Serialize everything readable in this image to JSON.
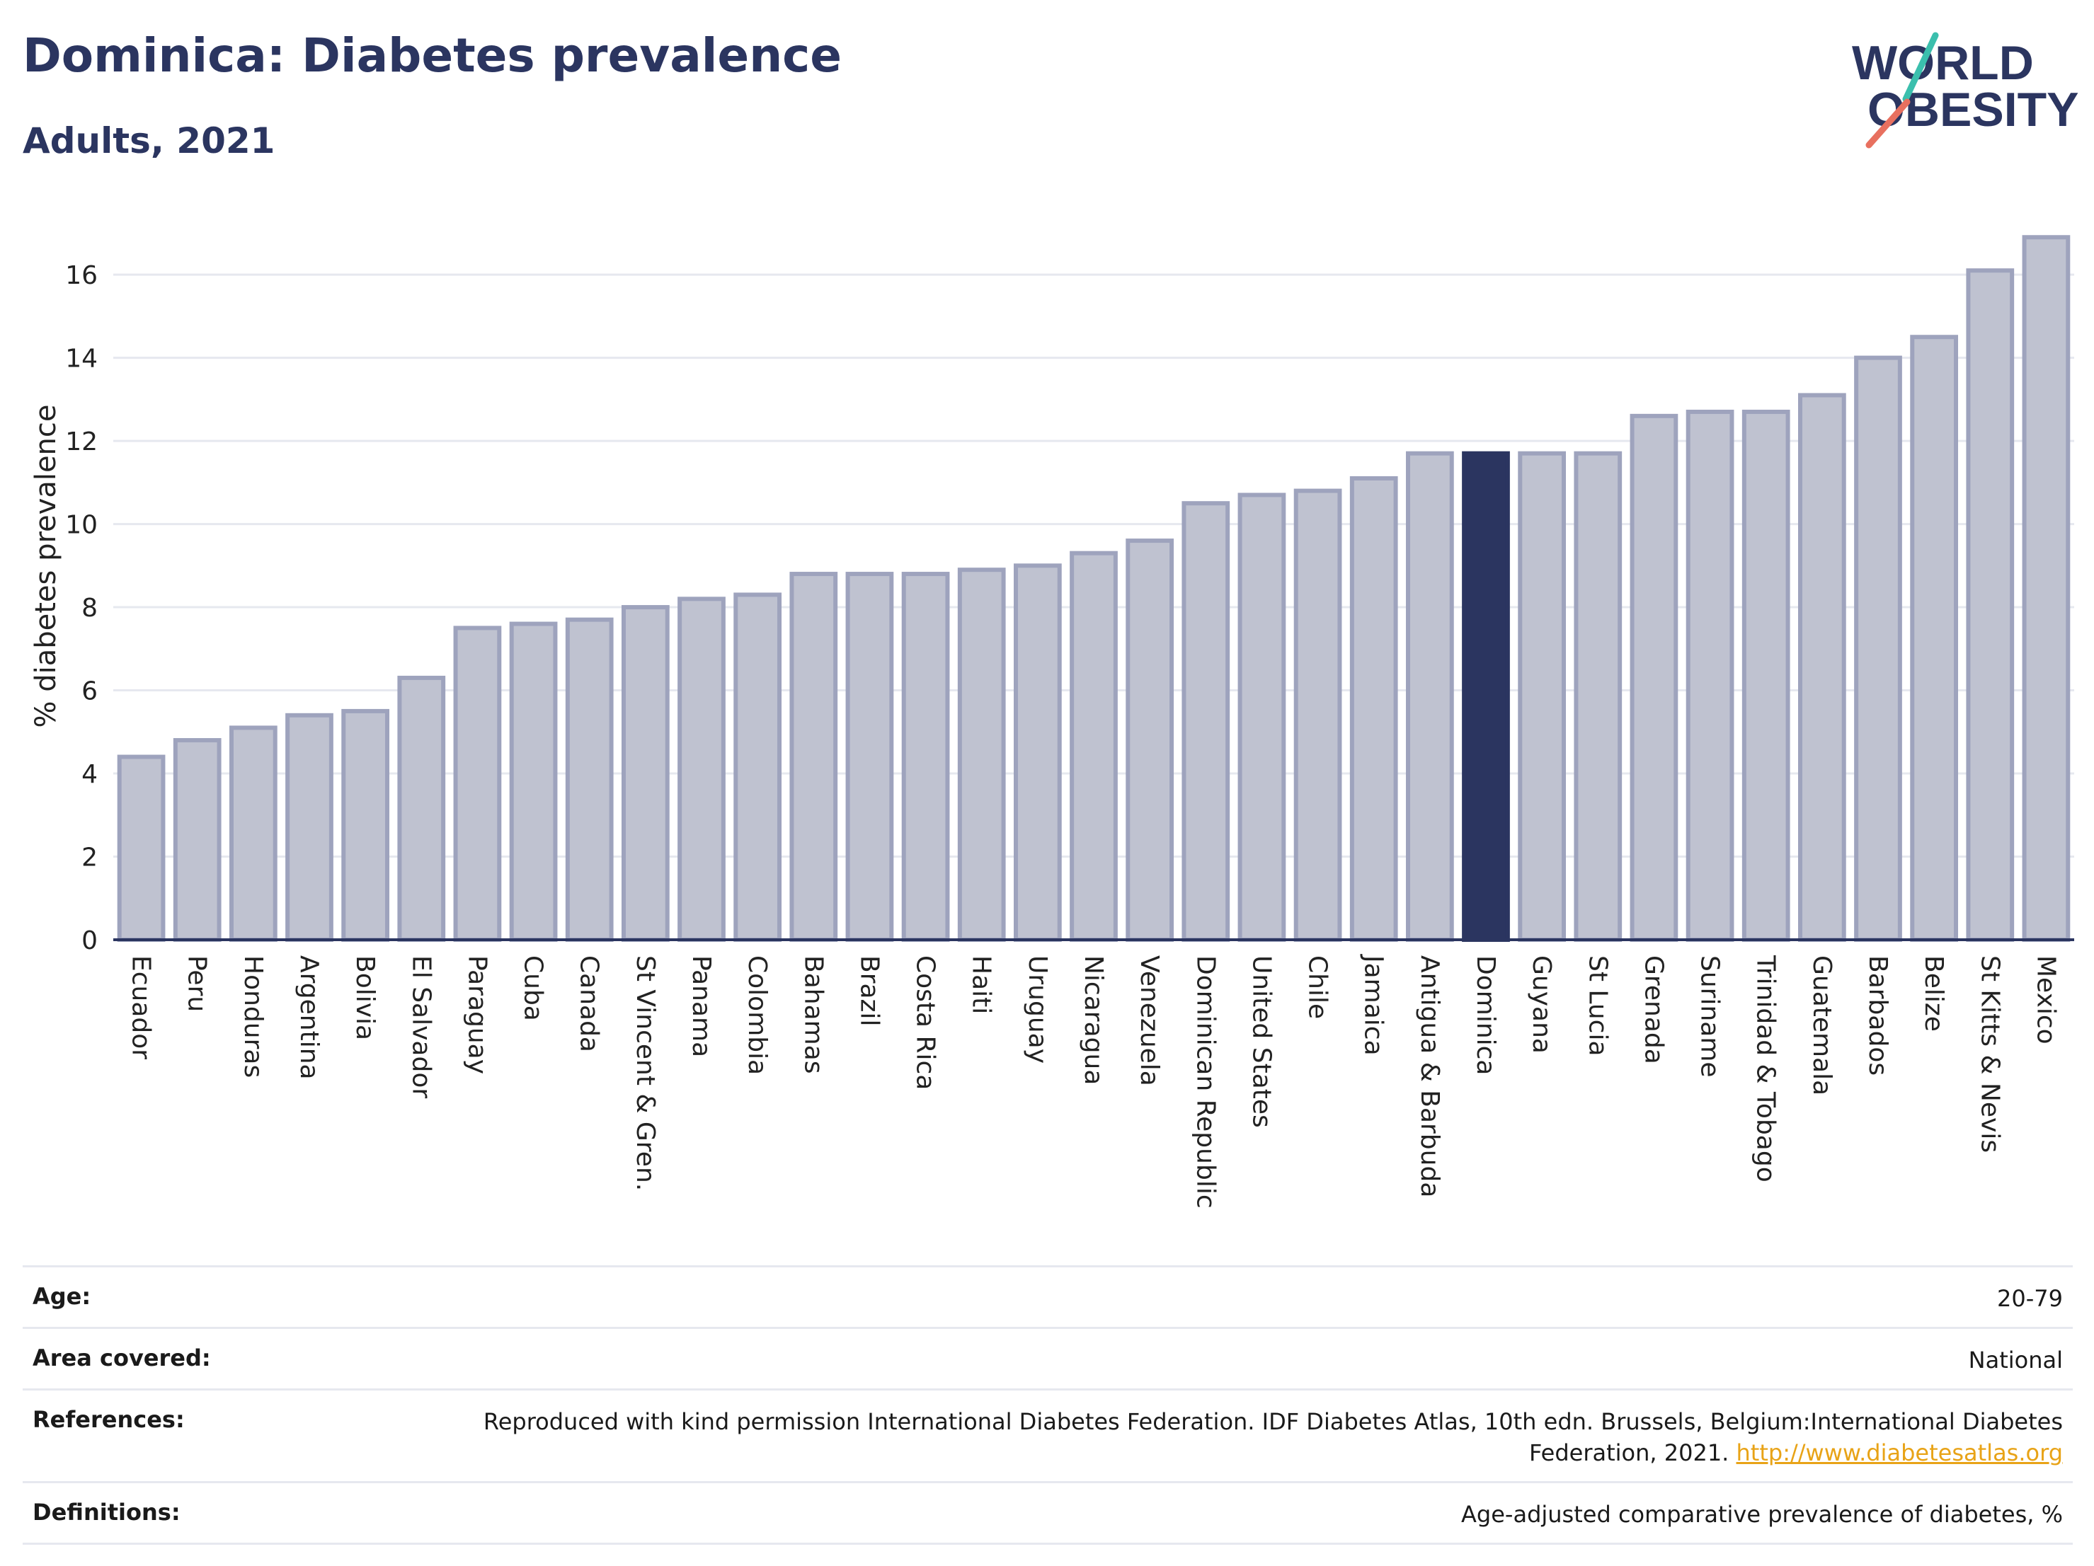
{
  "header": {
    "title": "Dominica: Diabetes prevalence",
    "subtitle": "Adults, 2021"
  },
  "logo": {
    "line1": "WORLD",
    "line2": "OBESITY"
  },
  "colors": {
    "title": "#2b3560",
    "bar": "#bfc2d0",
    "bar_border": "#9ea3bd",
    "highlight": "#2b3560",
    "grid": "#e6e8ef",
    "logo_teal": "#3bbfad",
    "logo_coral": "#e8705f",
    "link": "#e8a317"
  },
  "chart_data": {
    "type": "bar",
    "ylabel": "% diabetes prevalence",
    "ylim": [
      0,
      17.5
    ],
    "yticks": [
      0,
      2,
      4,
      6,
      8,
      10,
      12,
      14,
      16
    ],
    "highlight": "Dominica",
    "categories": [
      "Ecuador",
      "Peru",
      "Honduras",
      "Argentina",
      "Bolivia",
      "El Salvador",
      "Paraguay",
      "Cuba",
      "Canada",
      "St Vincent & Gren.",
      "Panama",
      "Colombia",
      "Bahamas",
      "Brazil",
      "Costa Rica",
      "Haiti",
      "Uruguay",
      "Nicaragua",
      "Venezuela",
      "Dominican Republic",
      "United States",
      "Chile",
      "Jamaica",
      "Antigua & Barbuda",
      "Dominica",
      "Guyana",
      "St Lucia",
      "Grenada",
      "Suriname",
      "Trinidad & Tobago",
      "Guatemala",
      "Barbados",
      "Belize",
      "St Kitts & Nevis",
      "Mexico"
    ],
    "values": [
      4.4,
      4.8,
      5.1,
      5.4,
      5.5,
      6.3,
      7.5,
      7.6,
      7.7,
      8.0,
      8.2,
      8.3,
      8.8,
      8.8,
      8.8,
      8.9,
      9.0,
      9.3,
      9.6,
      10.5,
      10.7,
      10.8,
      11.1,
      11.7,
      11.7,
      11.7,
      11.7,
      12.6,
      12.7,
      12.7,
      13.1,
      14.0,
      14.5,
      16.1,
      16.9
    ],
    "grid": true,
    "legend": "none"
  },
  "meta": {
    "age_label": "Age:",
    "age_value": "20-79",
    "area_label": "Area covered:",
    "area_value": "National",
    "ref_label": "References:",
    "ref_text": "Reproduced with kind permission International Diabetes Federation.  IDF Diabetes Atlas, 10th edn. Brussels, Belgium:International Diabetes Federation, 2021.",
    "ref_link": "http://www.diabetesatlas.org",
    "def_label": "Definitions:",
    "def_value": "Age-adjusted comparative prevalence of diabetes, %"
  }
}
